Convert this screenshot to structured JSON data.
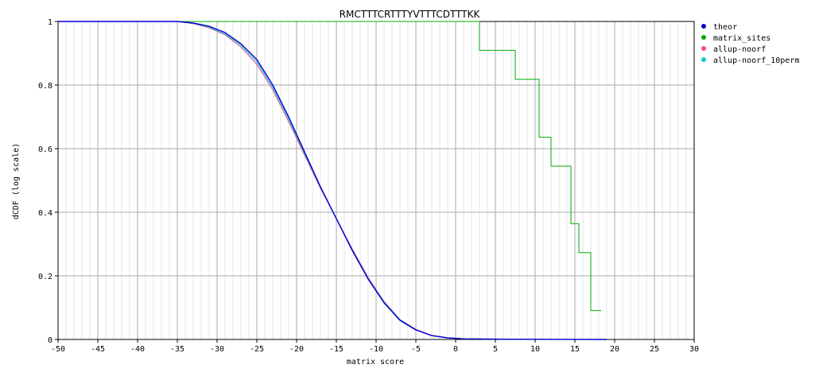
{
  "chart_data": {
    "type": "line",
    "title": "RMCTTTCRTTTYVTTTCDTTTKK",
    "xlabel": "matrix score",
    "ylabel": "dCDF (log scale)",
    "xlim": [
      -50,
      30
    ],
    "ylim": [
      0,
      1
    ],
    "xticks": [
      -50,
      -45,
      -40,
      -35,
      -30,
      -25,
      -20,
      -15,
      -10,
      -5,
      0,
      5,
      10,
      15,
      20,
      25,
      30
    ],
    "yticks": [
      0,
      0.2,
      0.4,
      0.6,
      0.8,
      1
    ],
    "grid": true,
    "legend_position": "top-right",
    "series": [
      {
        "name": "theor",
        "color": "#0000cc",
        "x": [
          -50,
          -35,
          -33,
          -31,
          -29,
          -27,
          -25,
          -23,
          -21,
          -19,
          -17,
          -15,
          -13,
          -11,
          -9,
          -7,
          -5,
          -3,
          -1,
          1,
          5,
          10,
          15,
          19
        ],
        "y": [
          1,
          1,
          0.995,
          0.985,
          0.965,
          0.93,
          0.88,
          0.8,
          0.7,
          0.59,
          0.48,
          0.38,
          0.28,
          0.19,
          0.115,
          0.06,
          0.03,
          0.012,
          0.005,
          0.002,
          0.001,
          0.0005,
          0.0002,
          0
        ]
      },
      {
        "name": "matrix_sites",
        "color": "#00aa00",
        "step": true,
        "x": [
          -50,
          3,
          3,
          7.5,
          7.5,
          10.5,
          10.5,
          12,
          12,
          14.5,
          14.5,
          15.5,
          15.5,
          17,
          17,
          18.3
        ],
        "y": [
          1,
          1,
          0.909,
          0.909,
          0.818,
          0.818,
          0.636,
          0.636,
          0.545,
          0.545,
          0.364,
          0.364,
          0.273,
          0.273,
          0.091,
          0.091
        ]
      },
      {
        "name": "allup-noorf",
        "color": "#ff4488",
        "x": [
          -50,
          -35,
          -33,
          -31,
          -29,
          -27,
          -25,
          -23,
          -21,
          -19,
          -17,
          -15,
          -13,
          -11,
          -9,
          -7,
          -5,
          -3,
          -1,
          1,
          5,
          10,
          15,
          19
        ],
        "y": [
          1,
          1,
          0.993,
          0.98,
          0.958,
          0.92,
          0.865,
          0.785,
          0.685,
          0.58,
          0.475,
          0.38,
          0.285,
          0.195,
          0.12,
          0.063,
          0.032,
          0.013,
          0.005,
          0.002,
          0.001,
          0.0005,
          0.0003,
          0
        ]
      },
      {
        "name": "allup-noorf_10perm",
        "color": "#00cccc",
        "x": [
          -50,
          -35,
          -33,
          -31,
          -29,
          -27,
          -25,
          -23,
          -21,
          -19,
          -17,
          -15,
          -13,
          -11,
          -9,
          -7,
          -5,
          -3,
          -1,
          1,
          5,
          10,
          15,
          19
        ],
        "y": [
          1,
          1,
          0.994,
          0.982,
          0.96,
          0.925,
          0.872,
          0.792,
          0.692,
          0.585,
          0.478,
          0.38,
          0.282,
          0.192,
          0.118,
          0.062,
          0.031,
          0.012,
          0.005,
          0.002,
          0.001,
          0.0005,
          0.0002,
          0
        ]
      }
    ]
  }
}
